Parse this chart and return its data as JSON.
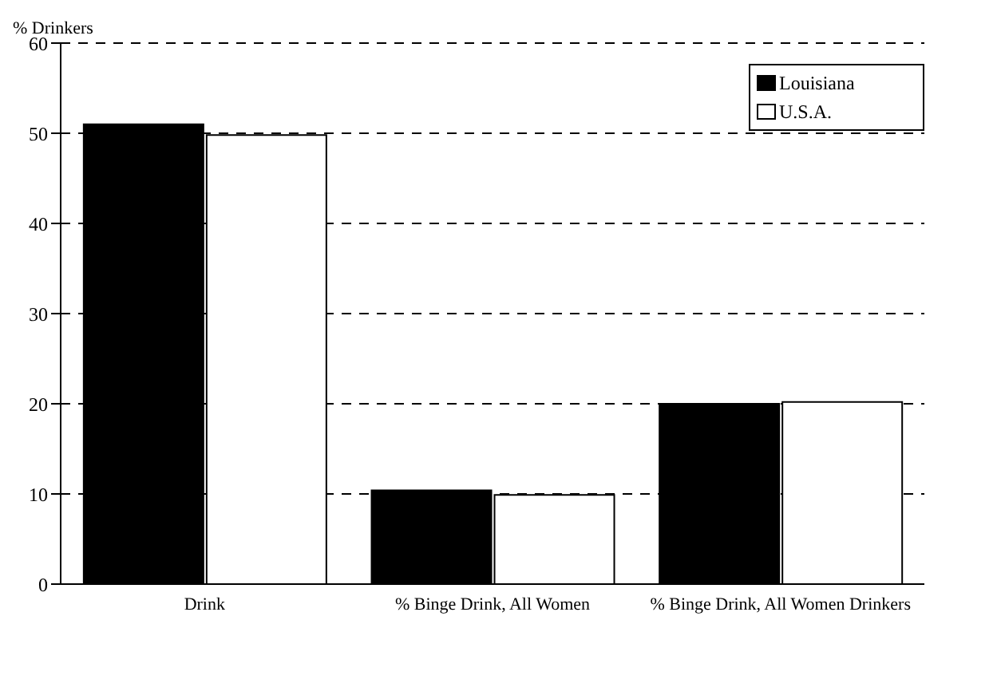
{
  "chart_data": {
    "type": "bar",
    "ylabel": "% Drinkers",
    "categories": [
      "Drink",
      "% Binge Drink, All Women",
      "% Binge Drink, All Women Drinkers"
    ],
    "series": [
      {
        "name": "Louisiana",
        "color": "#000000",
        "values": [
          51,
          10.4,
          20
        ]
      },
      {
        "name": "U.S.A.",
        "color": "#ffffff",
        "values": [
          49.8,
          9.9,
          20.2
        ]
      }
    ],
    "ylim": [
      0,
      60
    ],
    "yticks": [
      0,
      10,
      20,
      30,
      40,
      50,
      60
    ],
    "grid": "y",
    "legend": "top right"
  }
}
